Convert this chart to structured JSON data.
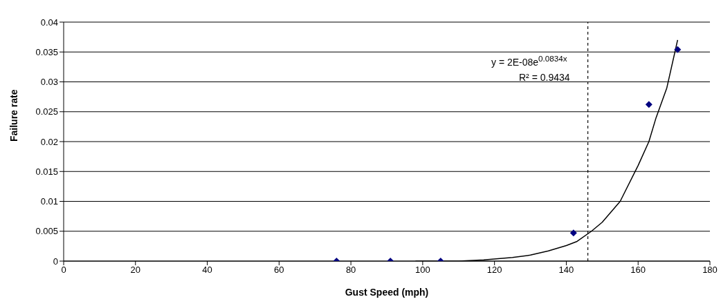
{
  "chart_data": {
    "type": "scatter",
    "xlabel": "Gust Speed (mph)",
    "ylabel": "Failure rate",
    "xlim": [
      0,
      180
    ],
    "xticks": [
      0,
      20,
      40,
      60,
      80,
      100,
      120,
      140,
      160,
      180
    ],
    "ylim": [
      0,
      0.04
    ],
    "yticks": [
      0,
      0.005,
      0.01,
      0.015,
      0.02,
      0.025,
      0.03,
      0.035,
      0.04
    ],
    "grid": "y",
    "legend": false,
    "series": [
      {
        "color": "#000080",
        "marker": "diamond",
        "x": [
          76,
          91,
          105,
          142,
          163,
          171
        ],
        "values": [
          0,
          0,
          0,
          0.0047,
          0.0262,
          0.0354
        ]
      },
      {
        "type": "line",
        "color": "#000000",
        "marker": "none",
        "line_style": "solid",
        "x": [
          98,
          110,
          117,
          125,
          130,
          135,
          140,
          143,
          147,
          150,
          155,
          160,
          163,
          165,
          168,
          171
        ],
        "values": [
          0,
          0,
          0.0002,
          0.0006,
          0.001,
          0.0017,
          0.0026,
          0.0033,
          0.005,
          0.0065,
          0.01,
          0.016,
          0.02,
          0.024,
          0.029,
          0.037
        ]
      }
    ],
    "ref_lines": [
      {
        "axis": "x",
        "value": 146,
        "color": "#000000",
        "line_style": "dashed"
      }
    ],
    "annotations": [
      "y = 2E-08e$^{0.0834x}$",
      "R² = 0.9434"
    ]
  }
}
